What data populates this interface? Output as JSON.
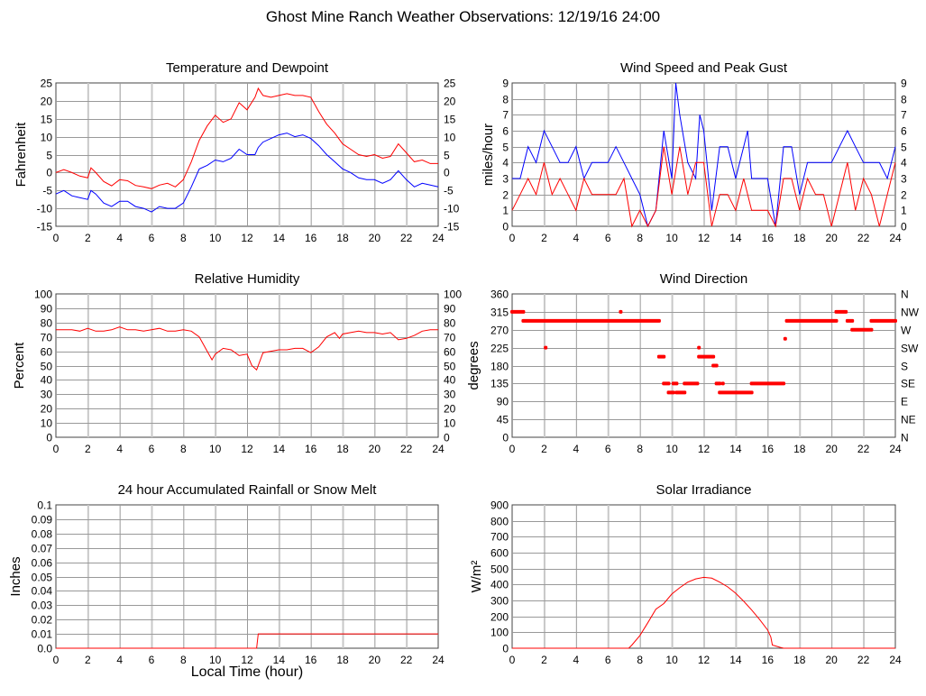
{
  "title": "Ghost Mine Ranch Weather Observations: 12/19/16 24:00",
  "chart_data": [
    {
      "type": "line",
      "title": "Temperature and Dewpoint",
      "ylabel": "Fahrenheit",
      "xlabel": "",
      "xlim": [
        0,
        24
      ],
      "ylim": [
        -15,
        25
      ],
      "grid": true,
      "xticks": [
        "0",
        "2",
        "4",
        "6",
        "8",
        "10",
        "12",
        "14",
        "16",
        "18",
        "20",
        "22",
        "24"
      ],
      "yticks": [
        "-15",
        "-10",
        "-5",
        "0",
        "5",
        "10",
        "15",
        "20",
        "25"
      ],
      "yticks_right": [
        "-15",
        "-10",
        "-5",
        "0",
        "5",
        "10",
        "15",
        "20",
        "25"
      ],
      "series": [
        {
          "name": "Temperature",
          "color": "#ff0000",
          "x": [
            0,
            0.5,
            1,
            1.5,
            2,
            2.2,
            2.5,
            3,
            3.5,
            4,
            4.5,
            5,
            5.5,
            6,
            6.5,
            7,
            7.5,
            8,
            8.5,
            9,
            9.5,
            10,
            10.5,
            11,
            11.5,
            12,
            12.5,
            12.7,
            13,
            13.5,
            14,
            14.5,
            15,
            15.5,
            16,
            16.5,
            17,
            17.5,
            18,
            18.5,
            19,
            19.5,
            20,
            20.5,
            21,
            21.5,
            22,
            22.5,
            23,
            23.5,
            24
          ],
          "y": [
            0,
            0.8,
            0,
            -1,
            -1.5,
            1.3,
            0,
            -2.5,
            -3.7,
            -2,
            -2.3,
            -3.6,
            -4,
            -4.5,
            -3.5,
            -3,
            -4,
            -2,
            3,
            9,
            13,
            16,
            14,
            15,
            19.5,
            17.5,
            21,
            23.5,
            21.5,
            21,
            21.5,
            22,
            21.5,
            21.5,
            21,
            17,
            13.5,
            11,
            8,
            6.5,
            5,
            4.5,
            5,
            4,
            4.5,
            8,
            5.5,
            3,
            3.5,
            2.5,
            2.5
          ]
        },
        {
          "name": "Dewpoint",
          "color": "#0000ff",
          "x": [
            0,
            0.5,
            1,
            1.5,
            2,
            2.2,
            2.5,
            3,
            3.5,
            4,
            4.5,
            5,
            5.5,
            6,
            6.5,
            7,
            7.5,
            8,
            8.5,
            9,
            9.5,
            10,
            10.5,
            11,
            11.5,
            12,
            12.5,
            12.7,
            13,
            13.5,
            14,
            14.5,
            15,
            15.5,
            16,
            16.5,
            17,
            17.5,
            18,
            18.5,
            19,
            19.5,
            20,
            20.5,
            21,
            21.5,
            22,
            22.5,
            23,
            23.5,
            24
          ],
          "y": [
            -6,
            -5,
            -6.5,
            -7,
            -7.5,
            -5,
            -6,
            -8.5,
            -9.5,
            -8,
            -8,
            -9.5,
            -10,
            -11,
            -9.5,
            -10,
            -10,
            -8.5,
            -4,
            1,
            2,
            3.5,
            3,
            4,
            6.5,
            5,
            5,
            7,
            8.5,
            9.5,
            10.5,
            11,
            10,
            10.5,
            9.5,
            7.5,
            5,
            3,
            1,
            0,
            -1.5,
            -2,
            -2,
            -3,
            -2,
            0.5,
            -2,
            -4,
            -3,
            -3.5,
            -4
          ]
        }
      ]
    },
    {
      "type": "line",
      "title": "Wind Speed and Peak Gust",
      "ylabel": "miles/hour",
      "xlabel": "",
      "xlim": [
        0,
        24
      ],
      "ylim": [
        0,
        9
      ],
      "grid": true,
      "xticks": [
        "0",
        "2",
        "4",
        "6",
        "8",
        "10",
        "12",
        "14",
        "16",
        "18",
        "20",
        "22",
        "24"
      ],
      "yticks": [
        "0",
        "1",
        "2",
        "3",
        "4",
        "5",
        "6",
        "7",
        "8",
        "9"
      ],
      "yticks_right": [
        "0",
        "1",
        "2",
        "3",
        "4",
        "5",
        "6",
        "7",
        "8",
        "9"
      ],
      "series": [
        {
          "name": "Peak Gust",
          "color": "#0000ff",
          "x": [
            0,
            0.5,
            1,
            1.5,
            2,
            2.5,
            3,
            3.5,
            4,
            4.5,
            5,
            5.5,
            6,
            6.5,
            7,
            7.5,
            8,
            8.5,
            9,
            9.5,
            10,
            10.25,
            10.5,
            11,
            11.5,
            11.75,
            12,
            12.5,
            13,
            13.5,
            14,
            14.5,
            14.75,
            15,
            15.5,
            16,
            16.5,
            17,
            17.5,
            18,
            18.5,
            19,
            19.5,
            20,
            20.5,
            21,
            21.5,
            22,
            22.5,
            23,
            23.5,
            24
          ],
          "y": [
            3,
            3,
            5,
            4,
            6,
            5,
            4,
            4,
            5,
            3,
            4,
            4,
            4,
            5,
            4,
            3,
            2,
            0,
            1,
            6,
            3,
            9,
            7,
            4,
            3,
            7,
            6,
            1,
            5,
            5,
            3,
            5,
            6,
            3,
            3,
            3,
            0,
            5,
            5,
            2,
            4,
            4,
            4,
            4,
            5,
            6,
            5,
            4,
            4,
            4,
            3,
            5
          ]
        },
        {
          "name": "Wind Speed",
          "color": "#ff0000",
          "x": [
            0,
            0.5,
            1,
            1.5,
            2,
            2.5,
            3,
            3.5,
            4,
            4.5,
            5,
            5.5,
            6,
            6.5,
            7,
            7.5,
            8,
            8.5,
            9,
            9.5,
            10,
            10.5,
            11,
            11.5,
            12,
            12.5,
            13,
            13.5,
            14,
            14.5,
            15,
            15.5,
            16,
            16.5,
            17,
            17.5,
            18,
            18.5,
            19,
            19.5,
            20,
            20.5,
            21,
            21.5,
            22,
            22.5,
            23,
            23.5,
            24
          ],
          "y": [
            1,
            2,
            3,
            2,
            4,
            2,
            3,
            2,
            1,
            3,
            2,
            2,
            2,
            2,
            3,
            0,
            1,
            0,
            1,
            5,
            2,
            5,
            2,
            4,
            4,
            0,
            2,
            2,
            1,
            3,
            1,
            1,
            1,
            0,
            3,
            3,
            1,
            3,
            2,
            2,
            0,
            2,
            4,
            1,
            3,
            2,
            0,
            2,
            4
          ]
        }
      ]
    },
    {
      "type": "line",
      "title": "Relative Humidity",
      "ylabel": "Percent",
      "xlabel": "",
      "xlim": [
        0,
        24
      ],
      "ylim": [
        0,
        100
      ],
      "grid": true,
      "xticks": [
        "0",
        "2",
        "4",
        "6",
        "8",
        "10",
        "12",
        "14",
        "16",
        "18",
        "20",
        "22",
        "24"
      ],
      "yticks": [
        "0",
        "10",
        "20",
        "30",
        "40",
        "50",
        "60",
        "70",
        "80",
        "90",
        "100"
      ],
      "yticks_right": [
        "0",
        "10",
        "20",
        "30",
        "40",
        "50",
        "60",
        "70",
        "80",
        "90",
        "100"
      ],
      "series": [
        {
          "name": "Relative Humidity",
          "color": "#ff0000",
          "x": [
            0,
            0.5,
            1,
            1.5,
            2,
            2.5,
            3,
            3.5,
            4,
            4.5,
            5,
            5.5,
            6,
            6.5,
            7,
            7.5,
            8,
            8.5,
            9,
            9.5,
            9.8,
            10,
            10.5,
            11,
            11.5,
            12,
            12.3,
            12.6,
            13,
            13.5,
            14,
            14.5,
            15,
            15.5,
            16,
            16.5,
            17,
            17.5,
            17.8,
            18,
            18.5,
            19,
            19.5,
            20,
            20.5,
            21,
            21.5,
            22,
            22.5,
            23,
            23.5,
            24
          ],
          "y": [
            75,
            75,
            75,
            74,
            76,
            74,
            74,
            75,
            77,
            75,
            75,
            74,
            75,
            76,
            74,
            74,
            75,
            74,
            70,
            60,
            54,
            58,
            62,
            61,
            57,
            58,
            50,
            47,
            59,
            60,
            61,
            61,
            62,
            62,
            59,
            63,
            70,
            73,
            69,
            72,
            73,
            74,
            73,
            73,
            72,
            73,
            68,
            69,
            71,
            74,
            75,
            75
          ]
        }
      ]
    },
    {
      "type": "scatter",
      "title": "Wind Direction",
      "ylabel": "degrees",
      "xlabel": "",
      "xlim": [
        0,
        24
      ],
      "ylim": [
        0,
        360
      ],
      "grid": true,
      "xticks": [
        "0",
        "2",
        "4",
        "6",
        "8",
        "10",
        "12",
        "14",
        "16",
        "18",
        "20",
        "22",
        "24"
      ],
      "yticks": [
        "0",
        "45",
        "90",
        "135",
        "180",
        "225",
        "270",
        "315",
        "360"
      ],
      "yticks_right": [
        "N",
        "NE",
        "E",
        "SE",
        "S",
        "SW",
        "W",
        "NW",
        "N"
      ],
      "series": [
        {
          "name": "Wind Direction",
          "color": "#ff0000",
          "runs": [
            [
              0,
              0.7,
              315
            ],
            [
              0.7,
              9.2,
              292.5
            ],
            [
              2.1,
              2.1,
              225
            ],
            [
              6.8,
              6.8,
              315
            ],
            [
              9.2,
              9.5,
              202.5
            ],
            [
              9.5,
              9.8,
              135
            ],
            [
              9.8,
              10.1,
              112.5
            ],
            [
              10.1,
              10.3,
              135
            ],
            [
              10.3,
              10.8,
              112.5
            ],
            [
              10.8,
              11.6,
              135
            ],
            [
              11.7,
              11.7,
              225
            ],
            [
              11.7,
              12.6,
              202.5
            ],
            [
              12.6,
              12.8,
              180
            ],
            [
              12.8,
              13.0,
              135
            ],
            [
              13.0,
              15.0,
              112.5
            ],
            [
              13.2,
              13.2,
              135
            ],
            [
              15.0,
              17.0,
              135
            ],
            [
              17.1,
              17.1,
              247.5
            ],
            [
              17.2,
              20.3,
              292.5
            ],
            [
              20.3,
              20.9,
              315
            ],
            [
              21.0,
              21.3,
              292.5
            ],
            [
              21.3,
              22.5,
              270
            ],
            [
              22.5,
              24,
              292.5
            ]
          ]
        }
      ]
    },
    {
      "type": "line",
      "title": "24 hour Accumulated Rainfall or Snow Melt",
      "ylabel": "Inches",
      "xlabel": "Local Time (hour)",
      "xlim": [
        0,
        24
      ],
      "ylim": [
        0,
        0.1
      ],
      "grid": true,
      "xticks": [
        "0",
        "2",
        "4",
        "6",
        "8",
        "10",
        "12",
        "14",
        "16",
        "18",
        "20",
        "22",
        "24"
      ],
      "yticks": [
        "0.0",
        "0.01",
        "0.02",
        "0.03",
        "0.04",
        "0.05",
        "0.06",
        "0.07",
        "0.08",
        "0.09",
        "0.1"
      ],
      "series": [
        {
          "name": "Accumulated Rainfall",
          "color": "#ff0000",
          "x": [
            0,
            12.6,
            12.7,
            24
          ],
          "y": [
            0,
            0,
            0.01,
            0.01
          ]
        }
      ]
    },
    {
      "type": "line",
      "title": "Solar Irradiance",
      "ylabel": "W/m²",
      "xlabel": "",
      "xlim": [
        0,
        24
      ],
      "ylim": [
        0,
        900
      ],
      "grid": true,
      "xticks": [
        "0",
        "2",
        "4",
        "6",
        "8",
        "10",
        "12",
        "14",
        "16",
        "18",
        "20",
        "22",
        "24"
      ],
      "yticks": [
        "0",
        "100",
        "200",
        "300",
        "400",
        "500",
        "600",
        "700",
        "800",
        "900"
      ],
      "series": [
        {
          "name": "Solar Irradiance",
          "color": "#ff0000",
          "x": [
            0,
            7.3,
            7.5,
            8,
            8.5,
            9,
            9.5,
            10,
            10.5,
            11,
            11.5,
            12,
            12.5,
            13,
            13.5,
            14,
            14.5,
            15,
            15.5,
            16,
            16.2,
            16.3,
            16.8,
            17,
            24
          ],
          "y": [
            0,
            0,
            20,
            80,
            160,
            245,
            280,
            340,
            380,
            415,
            435,
            445,
            440,
            415,
            385,
            345,
            295,
            240,
            180,
            115,
            70,
            20,
            5,
            0,
            0
          ]
        }
      ]
    }
  ]
}
